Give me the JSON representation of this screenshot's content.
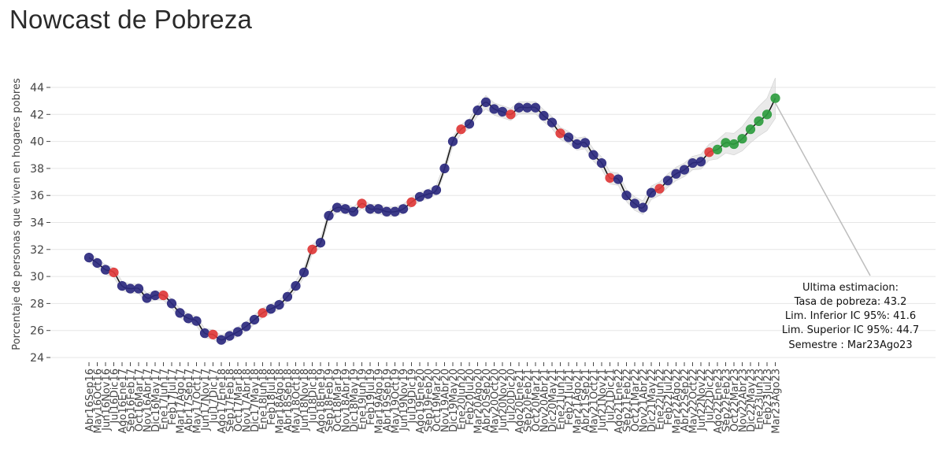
{
  "page": {
    "title": "Nowcast de Pobreza"
  },
  "chart_data": {
    "type": "line",
    "title": "Nowcast de Pobreza",
    "xlabel": "",
    "ylabel": "Porcentaje de personas que viven en hogares pobres",
    "ylim": [
      24,
      44.7
    ],
    "yticks": [
      24,
      26,
      28,
      30,
      32,
      34,
      36,
      38,
      40,
      42,
      44
    ],
    "grid": "horizontal",
    "categories": [
      "Abr16Sep16",
      "May16Oct16",
      "Jun16Nov16",
      "Jul16Dic16",
      "Ago16Ene17",
      "Sep16Feb17",
      "Oct16Mar17",
      "Nov16Abr17",
      "Dic16May17",
      "Ene17Jun17",
      "Feb17Jul17",
      "Mar17Ago17",
      "Abr17Sep17",
      "May17Oct17",
      "Jun17Nov17",
      "Jul17Dic17",
      "Ago17Ene18",
      "Sep17Feb18",
      "Oct17Mar18",
      "Nov17Abr18",
      "Dic17May18",
      "Ene18Jun18",
      "Feb18Jul18",
      "Mar18Ago18",
      "Abr18Sep18",
      "May18Oct18",
      "Jun18Nov18",
      "Jul18Dic18",
      "Ago18Ene19",
      "Sep18Feb19",
      "Oct18Mar19",
      "Nov18Abr19",
      "Dic18May19",
      "Ene19Jun19",
      "Feb19Jul19",
      "Mar19Ago19",
      "Abr19Sep19",
      "May19Oct19",
      "Jun19Nov19",
      "Jul19Dic19",
      "Ago19Ene20",
      "Sep19Feb20",
      "Oct19Mar20",
      "Nov19Abr20",
      "Dic19May20",
      "Ene20Jun20",
      "Feb20Jul20",
      "Mar20Ago20",
      "Abr20Sep20",
      "May20Oct20",
      "Jun20Nov20",
      "Jul20Dic20",
      "Ago20Ene21",
      "Sep20Feb21",
      "Oct20Mar21",
      "Nov20Abr21",
      "Dic20May21",
      "Ene21Jun21",
      "Feb21Jul21",
      "Mar21Ago21",
      "Abr21Sep21",
      "May21Oct21",
      "Jun21Nov21",
      "Jul21Dic21",
      "Ago21Ene22",
      "Sep21Feb22",
      "Oct21Mar22",
      "Nov21Abr22",
      "Dic21May22",
      "Ene22Jun22",
      "Feb22Jul22",
      "Mar22Ago22",
      "Abr22Sep22",
      "May22Oct22",
      "Jun22Nov22",
      "Jul22Dic22",
      "Ago22Ene23",
      "Sep22Feb23",
      "Oct22Mar23",
      "Nov22Abr23",
      "Dic22May23",
      "Ene23Jun23",
      "Feb23Jul23",
      "Mar23Ago23"
    ],
    "values": [
      31.4,
      31.0,
      30.5,
      30.3,
      29.3,
      29.1,
      29.1,
      28.4,
      28.6,
      28.6,
      28.0,
      27.3,
      26.9,
      26.7,
      25.8,
      25.7,
      25.3,
      25.6,
      25.9,
      26.3,
      26.8,
      27.3,
      27.6,
      27.9,
      28.5,
      29.3,
      30.3,
      32.0,
      32.5,
      34.5,
      35.1,
      35.0,
      34.8,
      35.4,
      35.0,
      35.0,
      34.8,
      34.8,
      35.0,
      35.5,
      35.9,
      36.1,
      36.4,
      38.0,
      40.0,
      40.9,
      41.3,
      42.3,
      42.9,
      42.4,
      42.2,
      42.0,
      42.5,
      42.5,
      42.5,
      41.9,
      41.4,
      40.6,
      40.3,
      39.8,
      39.9,
      39.0,
      38.4,
      37.3,
      37.2,
      36.0,
      35.4,
      35.1,
      36.2,
      36.5,
      37.1,
      37.6,
      37.9,
      38.4,
      38.5,
      39.2,
      39.4,
      39.9,
      39.8,
      40.2,
      40.9,
      41.5,
      42.0,
      43.2
    ],
    "band_halfwidth": [
      0.35,
      0.35,
      0.35,
      0.35,
      0.35,
      0.35,
      0.35,
      0.35,
      0.35,
      0.35,
      0.35,
      0.35,
      0.35,
      0.35,
      0.35,
      0.35,
      0.35,
      0.35,
      0.35,
      0.35,
      0.35,
      0.35,
      0.35,
      0.35,
      0.35,
      0.35,
      0.35,
      0.35,
      0.35,
      0.35,
      0.35,
      0.35,
      0.35,
      0.35,
      0.35,
      0.35,
      0.35,
      0.35,
      0.35,
      0.35,
      0.35,
      0.35,
      0.35,
      0.35,
      0.35,
      0.35,
      0.35,
      0.4,
      0.5,
      0.45,
      0.45,
      0.45,
      0.45,
      0.45,
      0.45,
      0.45,
      0.45,
      0.45,
      0.45,
      0.45,
      0.45,
      0.45,
      0.45,
      0.45,
      0.45,
      0.45,
      0.5,
      0.5,
      0.5,
      0.5,
      0.5,
      0.5,
      0.5,
      0.5,
      0.55,
      0.6,
      0.7,
      0.75,
      0.8,
      0.9,
      1.0,
      1.1,
      1.2,
      1.5
    ],
    "point_colors": {
      "observed": "#2d2a7f",
      "highlight": "#e03a3a",
      "nowcast": "#2e9c3f"
    },
    "highlight_indices": [
      3,
      9,
      15,
      21,
      27,
      33,
      39,
      45,
      51,
      57,
      63,
      69,
      75
    ],
    "nowcast_start_index": 76,
    "line_color": "#111111",
    "band_color": "#d8d8d8",
    "annotation": {
      "lines": [
        "Ultima estimacion:",
        "Tasa de pobreza:  43.2",
        "Lim. Inferior IC 95%:  41.6",
        "Lim. Superior IC 95%:  44.7",
        "Semestre : Mar23Ago23"
      ]
    }
  }
}
